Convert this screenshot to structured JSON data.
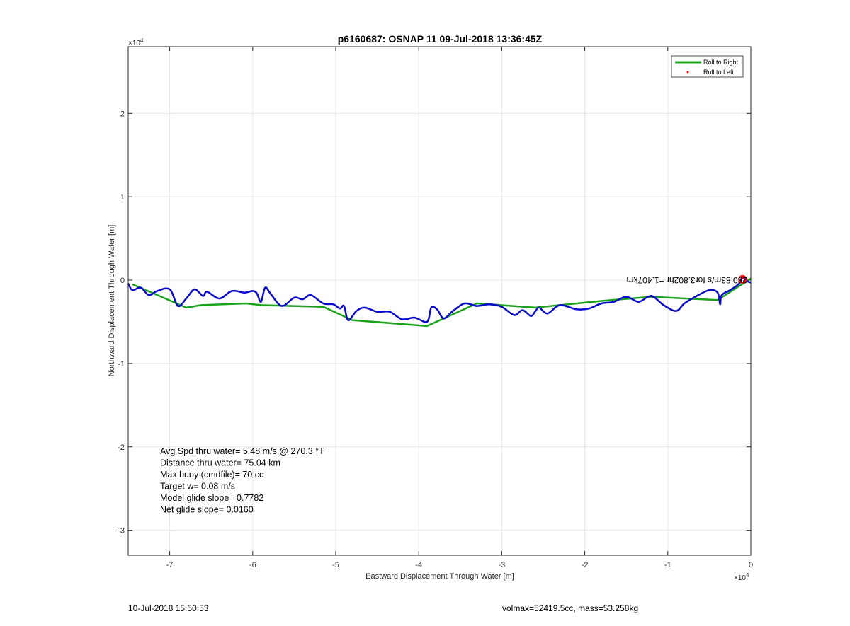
{
  "colors": {
    "roll_right": "#1aa31a",
    "roll_left": "#ff0000",
    "track": "#0a0acd",
    "grid": "#e6e6e6",
    "axis": "#262626"
  },
  "footer": {
    "timestamp": "10-Jul-2018 15:50:53",
    "volume_mass": "volmax=52419.5cc, mass=53.258kg"
  },
  "chart_data": {
    "type": "line",
    "title": "p6160687: OSNAP 11 09-Jul-2018 13:36:45Z",
    "xlabel": "Eastward Displacement Through Water [m]",
    "ylabel": "Northward Displacement Through Water [m]",
    "x_exponent": "×10",
    "x_exponent_power": "4",
    "y_exponent": "×10",
    "y_exponent_power": "4",
    "xlim": [
      -75000,
      0
    ],
    "ylim": [
      -33000,
      28000
    ],
    "xticks": [
      -70000,
      -60000,
      -50000,
      -40000,
      -30000,
      -20000,
      -10000,
      0
    ],
    "xtick_labels": [
      "-7",
      "-6",
      "-5",
      "-4",
      "-3",
      "-2",
      "-1",
      "0"
    ],
    "yticks": [
      -30000,
      -20000,
      -10000,
      0,
      10000,
      20000
    ],
    "ytick_labels": [
      "-3",
      "-2",
      "-1",
      "0",
      "1",
      "2"
    ],
    "grid": true,
    "legend_position": "top-right",
    "legend": [
      {
        "name": "Roll to Right",
        "style": "line",
        "color": "#1aa31a"
      },
      {
        "name": "Roll to Left",
        "style": "dot",
        "color": "#ff0000"
      }
    ],
    "annotation_rotated": "280.83m/s for3.802hr =1.407km",
    "stats": [
      "Avg Spd thru water=  5.48 m/s @ 270.3 °T",
      "Distance thru water= 75.04 km",
      "Max buoy (cmdfile)= 70 cc",
      "Target w= 0.08 m/s",
      "Model glide slope= 0.7782",
      "Net glide slope= 0.0160"
    ],
    "series": [
      {
        "name": "Roll to Right",
        "color": "#1aa31a",
        "x": [
          0,
          -4000,
          -12000,
          -18000,
          -26000,
          -33000,
          -39000,
          -48000,
          -51500,
          -59000,
          -60800,
          -66200,
          -68000,
          -74500
        ],
        "y": [
          200,
          -2400,
          -2000,
          -2500,
          -3300,
          -2800,
          -5500,
          -4800,
          -3200,
          -3000,
          -2800,
          -3000,
          -3300,
          -500
        ]
      },
      {
        "name": "track",
        "color": "#0a0acd",
        "x": [
          0,
          -500,
          -1000,
          -1500,
          -2500,
          -3500,
          -3700,
          -4000,
          -5000,
          -6500,
          -8000,
          -9000,
          -10500,
          -12000,
          -13500,
          -15000,
          -16500,
          -18000,
          -19500,
          -21000,
          -23000,
          -24500,
          -25500,
          -26000,
          -26500,
          -27500,
          -28500,
          -30000,
          -31500,
          -33000,
          -34500,
          -36000,
          -37000,
          -37800,
          -38500,
          -39000,
          -40500,
          -42000,
          -43500,
          -45000,
          -46500,
          -47500,
          -48500,
          -49000,
          -49500,
          -50300,
          -51500,
          -53000,
          -54000,
          -55000,
          -56500,
          -57800,
          -58500,
          -59000,
          -59500,
          -60000,
          -61000,
          -62500,
          -64000,
          -65500,
          -66000,
          -67000,
          -68000,
          -69000,
          -70000,
          -71500,
          -72500,
          -73500,
          -74500,
          -75000
        ],
        "y": [
          -300,
          -100,
          300,
          -500,
          -1200,
          -1800,
          -2900,
          -1500,
          -1200,
          -1900,
          -2800,
          -3700,
          -3000,
          -1900,
          -2600,
          -2000,
          -2600,
          -2800,
          -3400,
          -3500,
          -3000,
          -4000,
          -3300,
          -3800,
          -4300,
          -3600,
          -4200,
          -3200,
          -2900,
          -3100,
          -2800,
          -3800,
          -4600,
          -3500,
          -3300,
          -5000,
          -4500,
          -4700,
          -3800,
          -3800,
          -3300,
          -3700,
          -4800,
          -3100,
          -3400,
          -2900,
          -2800,
          -1800,
          -2300,
          -2100,
          -3100,
          -1700,
          -900,
          -2600,
          -1600,
          -1300,
          -1500,
          -1300,
          -2200,
          -1400,
          -1900,
          -1100,
          -2200,
          -3100,
          -1100,
          -1300,
          -1800,
          -900,
          -1200,
          -400
        ]
      }
    ],
    "roll_left_points": {
      "x": [
        -600,
        -800,
        -1000
      ],
      "y": [
        200,
        -100,
        300
      ]
    }
  }
}
